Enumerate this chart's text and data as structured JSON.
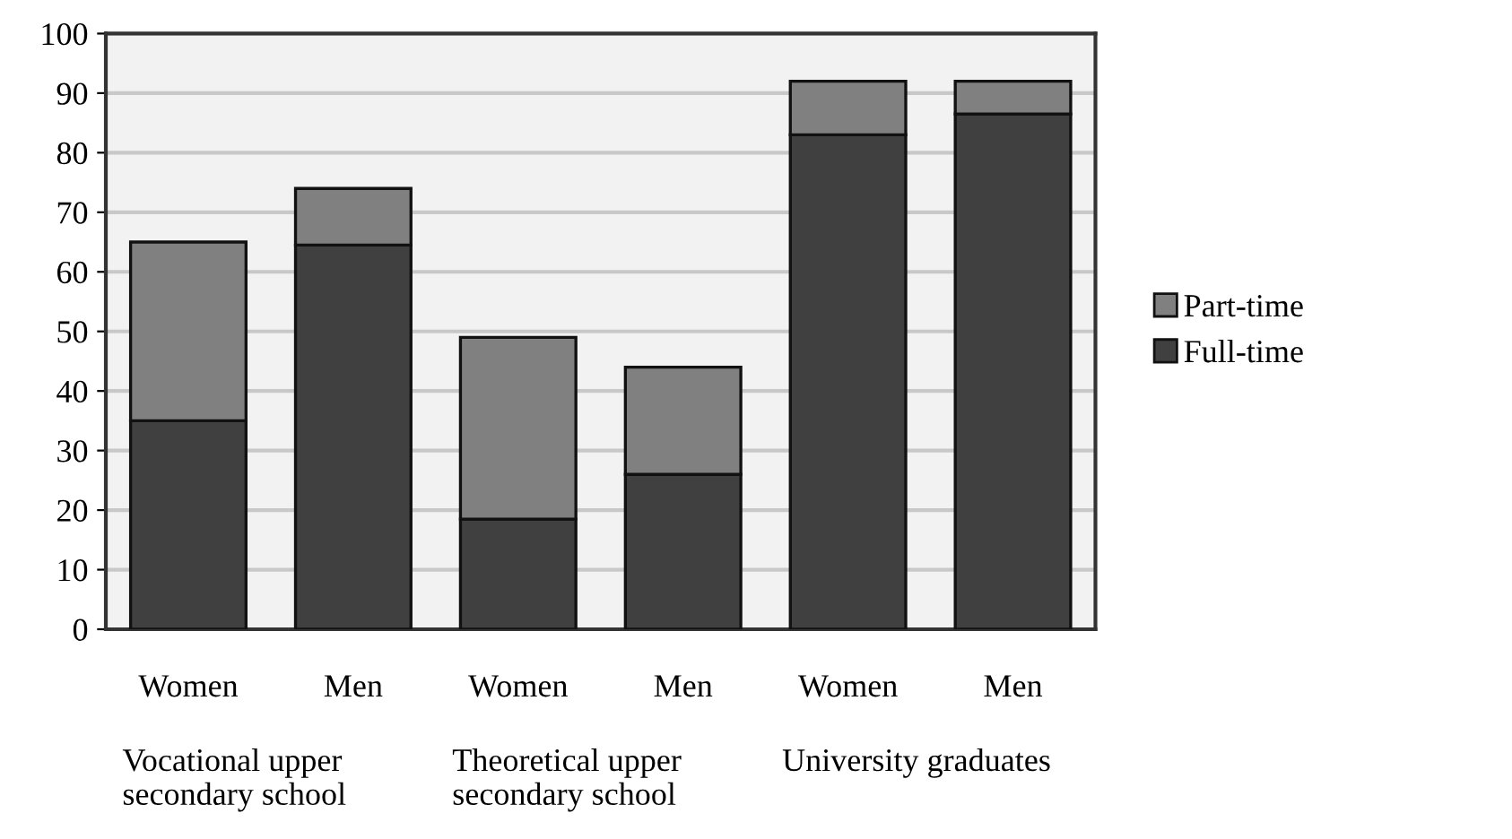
{
  "chart_data": {
    "type": "bar",
    "stacked": true,
    "categories": [
      "Women",
      "Men",
      "Women",
      "Men",
      "Women",
      "Men"
    ],
    "series": [
      {
        "name": "Full-time",
        "color": "#404040",
        "values": [
          35,
          64.5,
          18.5,
          26,
          83,
          86.5
        ]
      },
      {
        "name": "Part-time",
        "color": "#808080",
        "values": [
          30,
          9.5,
          30.5,
          18,
          9,
          5.5
        ]
      }
    ],
    "annotations": [
      "Vocational upper\nsecondary school",
      "Theoretical upper\nsecondary school",
      "University graduates"
    ],
    "ylim": [
      0,
      100
    ],
    "yticks": [
      0,
      10,
      20,
      30,
      40,
      50,
      60,
      70,
      80,
      90,
      100
    ],
    "grid": "y",
    "legend": "right"
  }
}
